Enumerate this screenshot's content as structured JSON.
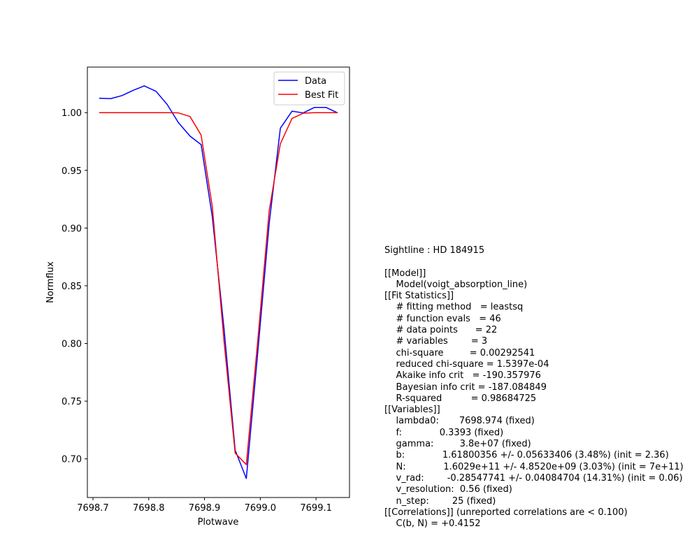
{
  "chart_data": {
    "type": "line",
    "xlabel": "Plotwave",
    "ylabel": "Normflux",
    "xlim": [
      7698.69,
      7699.16
    ],
    "ylim": [
      0.6665,
      1.0395
    ],
    "xticks": [
      7698.7,
      7698.8,
      7698.9,
      7699.0,
      7699.1
    ],
    "xtick_labels": [
      "7698.7",
      "7698.8",
      "7698.9",
      "7699.0",
      "7699.1"
    ],
    "yticks": [
      0.7,
      0.75,
      0.8,
      0.85,
      0.9,
      0.95,
      1.0
    ],
    "ytick_labels": [
      "0.70",
      "0.75",
      "0.80",
      "0.85",
      "0.90",
      "0.95",
      "1.00"
    ],
    "legend_position": "top-right",
    "grid": false,
    "x": [
      7698.712,
      7698.732,
      7698.752,
      7698.772,
      7698.792,
      7698.813,
      7698.833,
      7698.853,
      7698.874,
      7698.894,
      7698.914,
      7698.935,
      7698.955,
      7698.975,
      7698.996,
      7699.016,
      7699.036,
      7699.057,
      7699.077,
      7699.097,
      7699.118,
      7699.138
    ],
    "series": [
      {
        "name": "Data",
        "color": "#0000ff",
        "values": [
          1.0125,
          1.0122,
          1.0148,
          1.0193,
          1.0232,
          1.0185,
          1.0072,
          0.9915,
          0.9797,
          0.9723,
          0.9099,
          0.813,
          0.7075,
          0.683,
          0.795,
          0.904,
          0.9865,
          1.0013,
          0.9998,
          1.0045,
          1.0045,
          1.0
        ]
      },
      {
        "name": "Best Fit",
        "color": "#ff0000",
        "values": [
          1.0,
          1.0,
          1.0,
          1.0,
          1.0,
          1.0,
          1.0,
          0.9998,
          0.9967,
          0.9805,
          0.9186,
          0.802,
          0.705,
          0.695,
          0.805,
          0.915,
          0.973,
          0.995,
          0.9995,
          1.0,
          1.0,
          1.0
        ]
      }
    ]
  },
  "report": {
    "lines": [
      "Sightline : HD 184915",
      "",
      "[[Model]]",
      "    Model(voigt_absorption_line)",
      "[[Fit Statistics]]",
      "    # fitting method   = leastsq",
      "    # function evals   = 46",
      "    # data points      = 22",
      "    # variables        = 3",
      "    chi-square         = 0.00292541",
      "    reduced chi-square = 1.5397e-04",
      "    Akaike info crit   = -190.357976",
      "    Bayesian info crit = -187.084849",
      "    R-squared          = 0.98684725",
      "[[Variables]]",
      "    lambda0:       7698.974 (fixed)",
      "    f:             0.3393 (fixed)",
      "    gamma:         3.8e+07 (fixed)",
      "    b:             1.61800356 +/- 0.05633406 (3.48%) (init = 2.36)",
      "    N:             1.6029e+11 +/- 4.8520e+09 (3.03%) (init = 7e+11)",
      "    v_rad:        -0.28547741 +/- 0.04084704 (14.31%) (init = 0.06)",
      "    v_resolution:  0.56 (fixed)",
      "    n_step:        25 (fixed)",
      "[[Correlations]] (unreported correlations are < 0.100)",
      "    C(b, N) = +0.4152"
    ]
  }
}
